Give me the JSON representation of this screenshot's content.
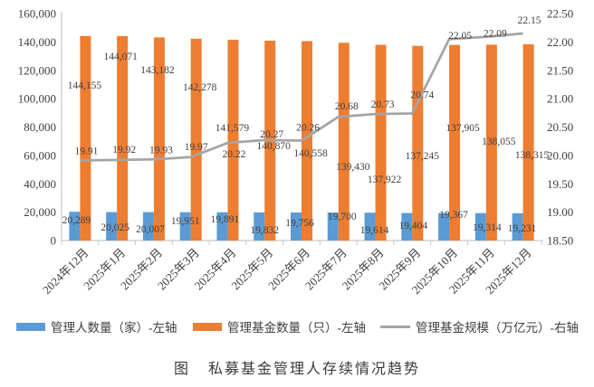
{
  "chart_data": {
    "type": "combo",
    "title": "",
    "categories": [
      "2024年12月",
      "2025年1月",
      "2025年2月",
      "2025年3月",
      "2025年4月",
      "2025年5月",
      "2025年6月",
      "2025年7月",
      "2025年8月",
      "2025年9月",
      "2025年10月",
      "2025年11月",
      "2025年12月"
    ],
    "series": [
      {
        "name": "管理人数量（家）-左轴",
        "type": "bar",
        "axis": "left",
        "color": "#5B9BD5",
        "values": [
          20289,
          20025,
          20007,
          19951,
          19891,
          19832,
          19756,
          19700,
          19614,
          19404,
          19367,
          19314,
          19231
        ]
      },
      {
        "name": "管理基金数量（只）-左轴",
        "type": "bar",
        "axis": "left",
        "color": "#ED7D31",
        "values": [
          144155,
          144071,
          143182,
          142278,
          141579,
          140870,
          140558,
          139430,
          137922,
          137245,
          137905,
          138055,
          138315
        ]
      },
      {
        "name": "管理基金规模（万亿元）-右轴",
        "type": "line",
        "axis": "right",
        "color": "#A5A5A5",
        "values": [
          19.91,
          19.92,
          19.93,
          19.97,
          20.22,
          20.27,
          20.26,
          20.68,
          20.73,
          20.74,
          22.05,
          22.09,
          22.15
        ]
      }
    ],
    "left_axis": {
      "min": 0,
      "max": 160000,
      "step": 20000,
      "tick_labels": [
        "160,000",
        "140,000",
        "120,000",
        "100,000",
        "80,000",
        "60,000",
        "40,000",
        "20,000",
        "0"
      ]
    },
    "right_axis": {
      "min": 18.5,
      "max": 22.5,
      "step": 0.5,
      "tick_labels": [
        "22.50",
        "22.00",
        "21.50",
        "21.00",
        "20.50",
        "20.00",
        "19.50",
        "19.00",
        "18.50"
      ]
    },
    "grid": false,
    "data_labels": true,
    "legend_position": "bottom",
    "text_color": "#404040",
    "axis_line_color": "#C9C9C9"
  },
  "caption": {
    "prefix": "图",
    "title": "私募基金管理人存续情况趋势"
  }
}
